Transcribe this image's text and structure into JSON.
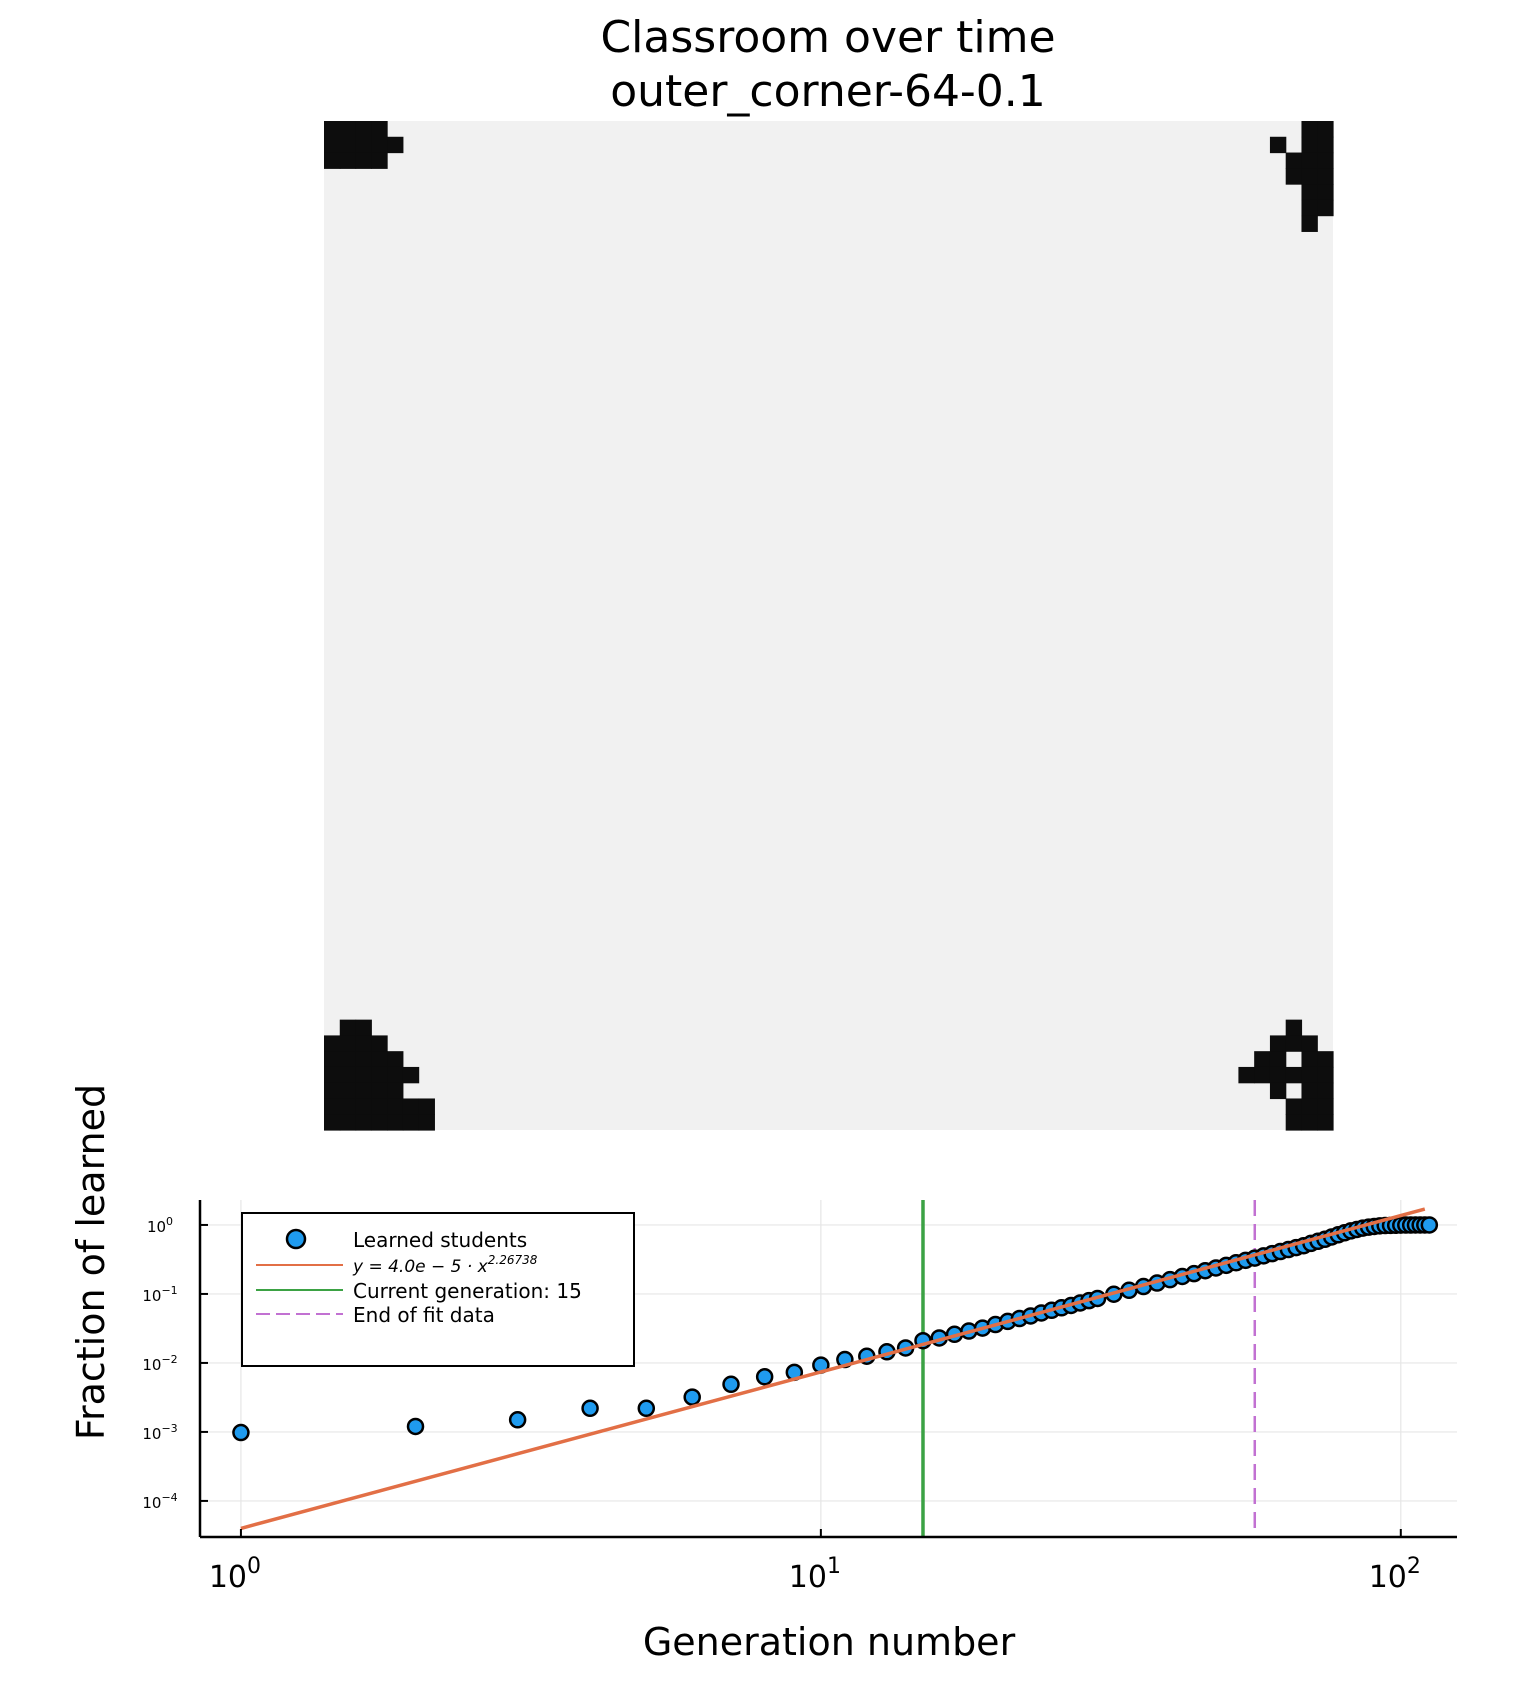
{
  "figure": {
    "title_line1": "Classroom over time",
    "title_line2": "outer_corner-64-0.1"
  },
  "grid": {
    "size": 64,
    "background_color": "#f1f1f1",
    "filled_color": "#0d0d0d",
    "filled_cells": [
      [
        0,
        0
      ],
      [
        1,
        0
      ],
      [
        2,
        0
      ],
      [
        3,
        0
      ],
      [
        0,
        1
      ],
      [
        1,
        1
      ],
      [
        2,
        1
      ],
      [
        3,
        1
      ],
      [
        4,
        1
      ],
      [
        0,
        2
      ],
      [
        1,
        2
      ],
      [
        2,
        2
      ],
      [
        3,
        2
      ],
      [
        62,
        0
      ],
      [
        63,
        0
      ],
      [
        60,
        1
      ],
      [
        62,
        1
      ],
      [
        63,
        1
      ],
      [
        61,
        2
      ],
      [
        62,
        2
      ],
      [
        63,
        2
      ],
      [
        61,
        3
      ],
      [
        62,
        3
      ],
      [
        63,
        3
      ],
      [
        62,
        4
      ],
      [
        63,
        4
      ],
      [
        62,
        5
      ],
      [
        63,
        5
      ],
      [
        62,
        6
      ],
      [
        1,
        57
      ],
      [
        2,
        57
      ],
      [
        0,
        58
      ],
      [
        1,
        58
      ],
      [
        2,
        58
      ],
      [
        3,
        58
      ],
      [
        0,
        59
      ],
      [
        1,
        59
      ],
      [
        2,
        59
      ],
      [
        3,
        59
      ],
      [
        4,
        59
      ],
      [
        0,
        60
      ],
      [
        1,
        60
      ],
      [
        2,
        60
      ],
      [
        3,
        60
      ],
      [
        4,
        60
      ],
      [
        5,
        60
      ],
      [
        0,
        61
      ],
      [
        1,
        61
      ],
      [
        2,
        61
      ],
      [
        3,
        61
      ],
      [
        4,
        61
      ],
      [
        0,
        62
      ],
      [
        1,
        62
      ],
      [
        2,
        62
      ],
      [
        3,
        62
      ],
      [
        4,
        62
      ],
      [
        5,
        62
      ],
      [
        6,
        62
      ],
      [
        0,
        63
      ],
      [
        1,
        63
      ],
      [
        2,
        63
      ],
      [
        3,
        63
      ],
      [
        4,
        63
      ],
      [
        5,
        63
      ],
      [
        6,
        63
      ],
      [
        61,
        57
      ],
      [
        60,
        58
      ],
      [
        61,
        58
      ],
      [
        62,
        58
      ],
      [
        59,
        59
      ],
      [
        60,
        59
      ],
      [
        62,
        59
      ],
      [
        63,
        59
      ],
      [
        58,
        60
      ],
      [
        59,
        60
      ],
      [
        60,
        60
      ],
      [
        61,
        60
      ],
      [
        62,
        60
      ],
      [
        63,
        60
      ],
      [
        60,
        61
      ],
      [
        62,
        61
      ],
      [
        63,
        61
      ],
      [
        61,
        62
      ],
      [
        62,
        62
      ],
      [
        63,
        62
      ],
      [
        61,
        63
      ],
      [
        62,
        63
      ],
      [
        63,
        63
      ]
    ]
  },
  "chart_data": {
    "type": "scatter",
    "xlabel": "Generation number",
    "ylabel": "Fraction of learned",
    "xscale": "log",
    "yscale": "log",
    "xlim": [
      0.85,
      125
    ],
    "ylim": [
      3e-05,
      2.3
    ],
    "x_ticks": [
      {
        "base": "10",
        "exp": "0",
        "value": 1
      },
      {
        "base": "10",
        "exp": "1",
        "value": 10
      },
      {
        "base": "10",
        "exp": "2",
        "value": 100
      }
    ],
    "y_ticks": [
      {
        "base": "10",
        "exp": "0",
        "value": 1
      },
      {
        "base": "10",
        "exp": "−1",
        "value": 0.1
      },
      {
        "base": "10",
        "exp": "−2",
        "value": 0.01
      },
      {
        "base": "10",
        "exp": "−3",
        "value": 0.001
      },
      {
        "base": "10",
        "exp": "−4",
        "value": 0.0001
      }
    ],
    "grid": true,
    "legend_position": "top-left",
    "series": [
      {
        "name": "Learned students",
        "kind": "scatter",
        "color": "#1f9bef",
        "x": [
          1,
          2,
          3,
          4,
          5,
          6,
          7,
          8,
          9,
          10,
          11,
          12,
          13,
          14,
          15,
          16,
          17,
          18,
          19,
          20,
          21,
          22,
          23,
          24,
          25,
          26,
          27,
          28,
          29,
          30,
          32,
          34,
          36,
          38,
          40,
          42,
          44,
          46,
          48,
          50,
          52,
          54,
          56,
          58,
          60,
          62,
          64,
          66,
          68,
          70,
          72,
          74,
          76,
          78,
          80,
          82,
          84,
          86,
          88,
          90,
          92,
          94,
          96,
          98,
          100,
          102,
          104,
          106,
          108,
          110,
          112
        ],
        "y": [
          0.00098,
          0.0012,
          0.0015,
          0.0022,
          0.0022,
          0.0032,
          0.0049,
          0.0063,
          0.0073,
          0.0093,
          0.0112,
          0.0125,
          0.0145,
          0.0165,
          0.021,
          0.023,
          0.026,
          0.029,
          0.032,
          0.036,
          0.04,
          0.044,
          0.048,
          0.053,
          0.058,
          0.063,
          0.068,
          0.074,
          0.08,
          0.086,
          0.099,
          0.113,
          0.128,
          0.144,
          0.161,
          0.179,
          0.197,
          0.217,
          0.238,
          0.26,
          0.283,
          0.307,
          0.331,
          0.357,
          0.384,
          0.412,
          0.44,
          0.47,
          0.5,
          0.54,
          0.58,
          0.62,
          0.67,
          0.72,
          0.77,
          0.82,
          0.86,
          0.9,
          0.93,
          0.95,
          0.97,
          0.98,
          0.985,
          0.99,
          0.995,
          0.997,
          0.998,
          0.999,
          1.0,
          1.0,
          1.0
        ]
      },
      {
        "name": "y = 4.0e − 5 · x^2.26738",
        "kind": "fit",
        "color": "#e26f46",
        "coefficient": 4e-05,
        "exponent": 2.26738,
        "x_range": [
          1,
          110
        ]
      },
      {
        "name": "Current generation: 15",
        "kind": "vline",
        "color": "#3ba244",
        "x": 15
      },
      {
        "name": "End of fit data",
        "kind": "vline-dashed",
        "color": "#c271d2",
        "x": 56
      }
    ],
    "legend": {
      "scatter_label": "Learned students",
      "fit_label_main": "y = 4.0e − 5 · x",
      "fit_label_exp": "2.26738",
      "current_label": "Current generation: 15",
      "end_label": "End of fit data"
    }
  }
}
